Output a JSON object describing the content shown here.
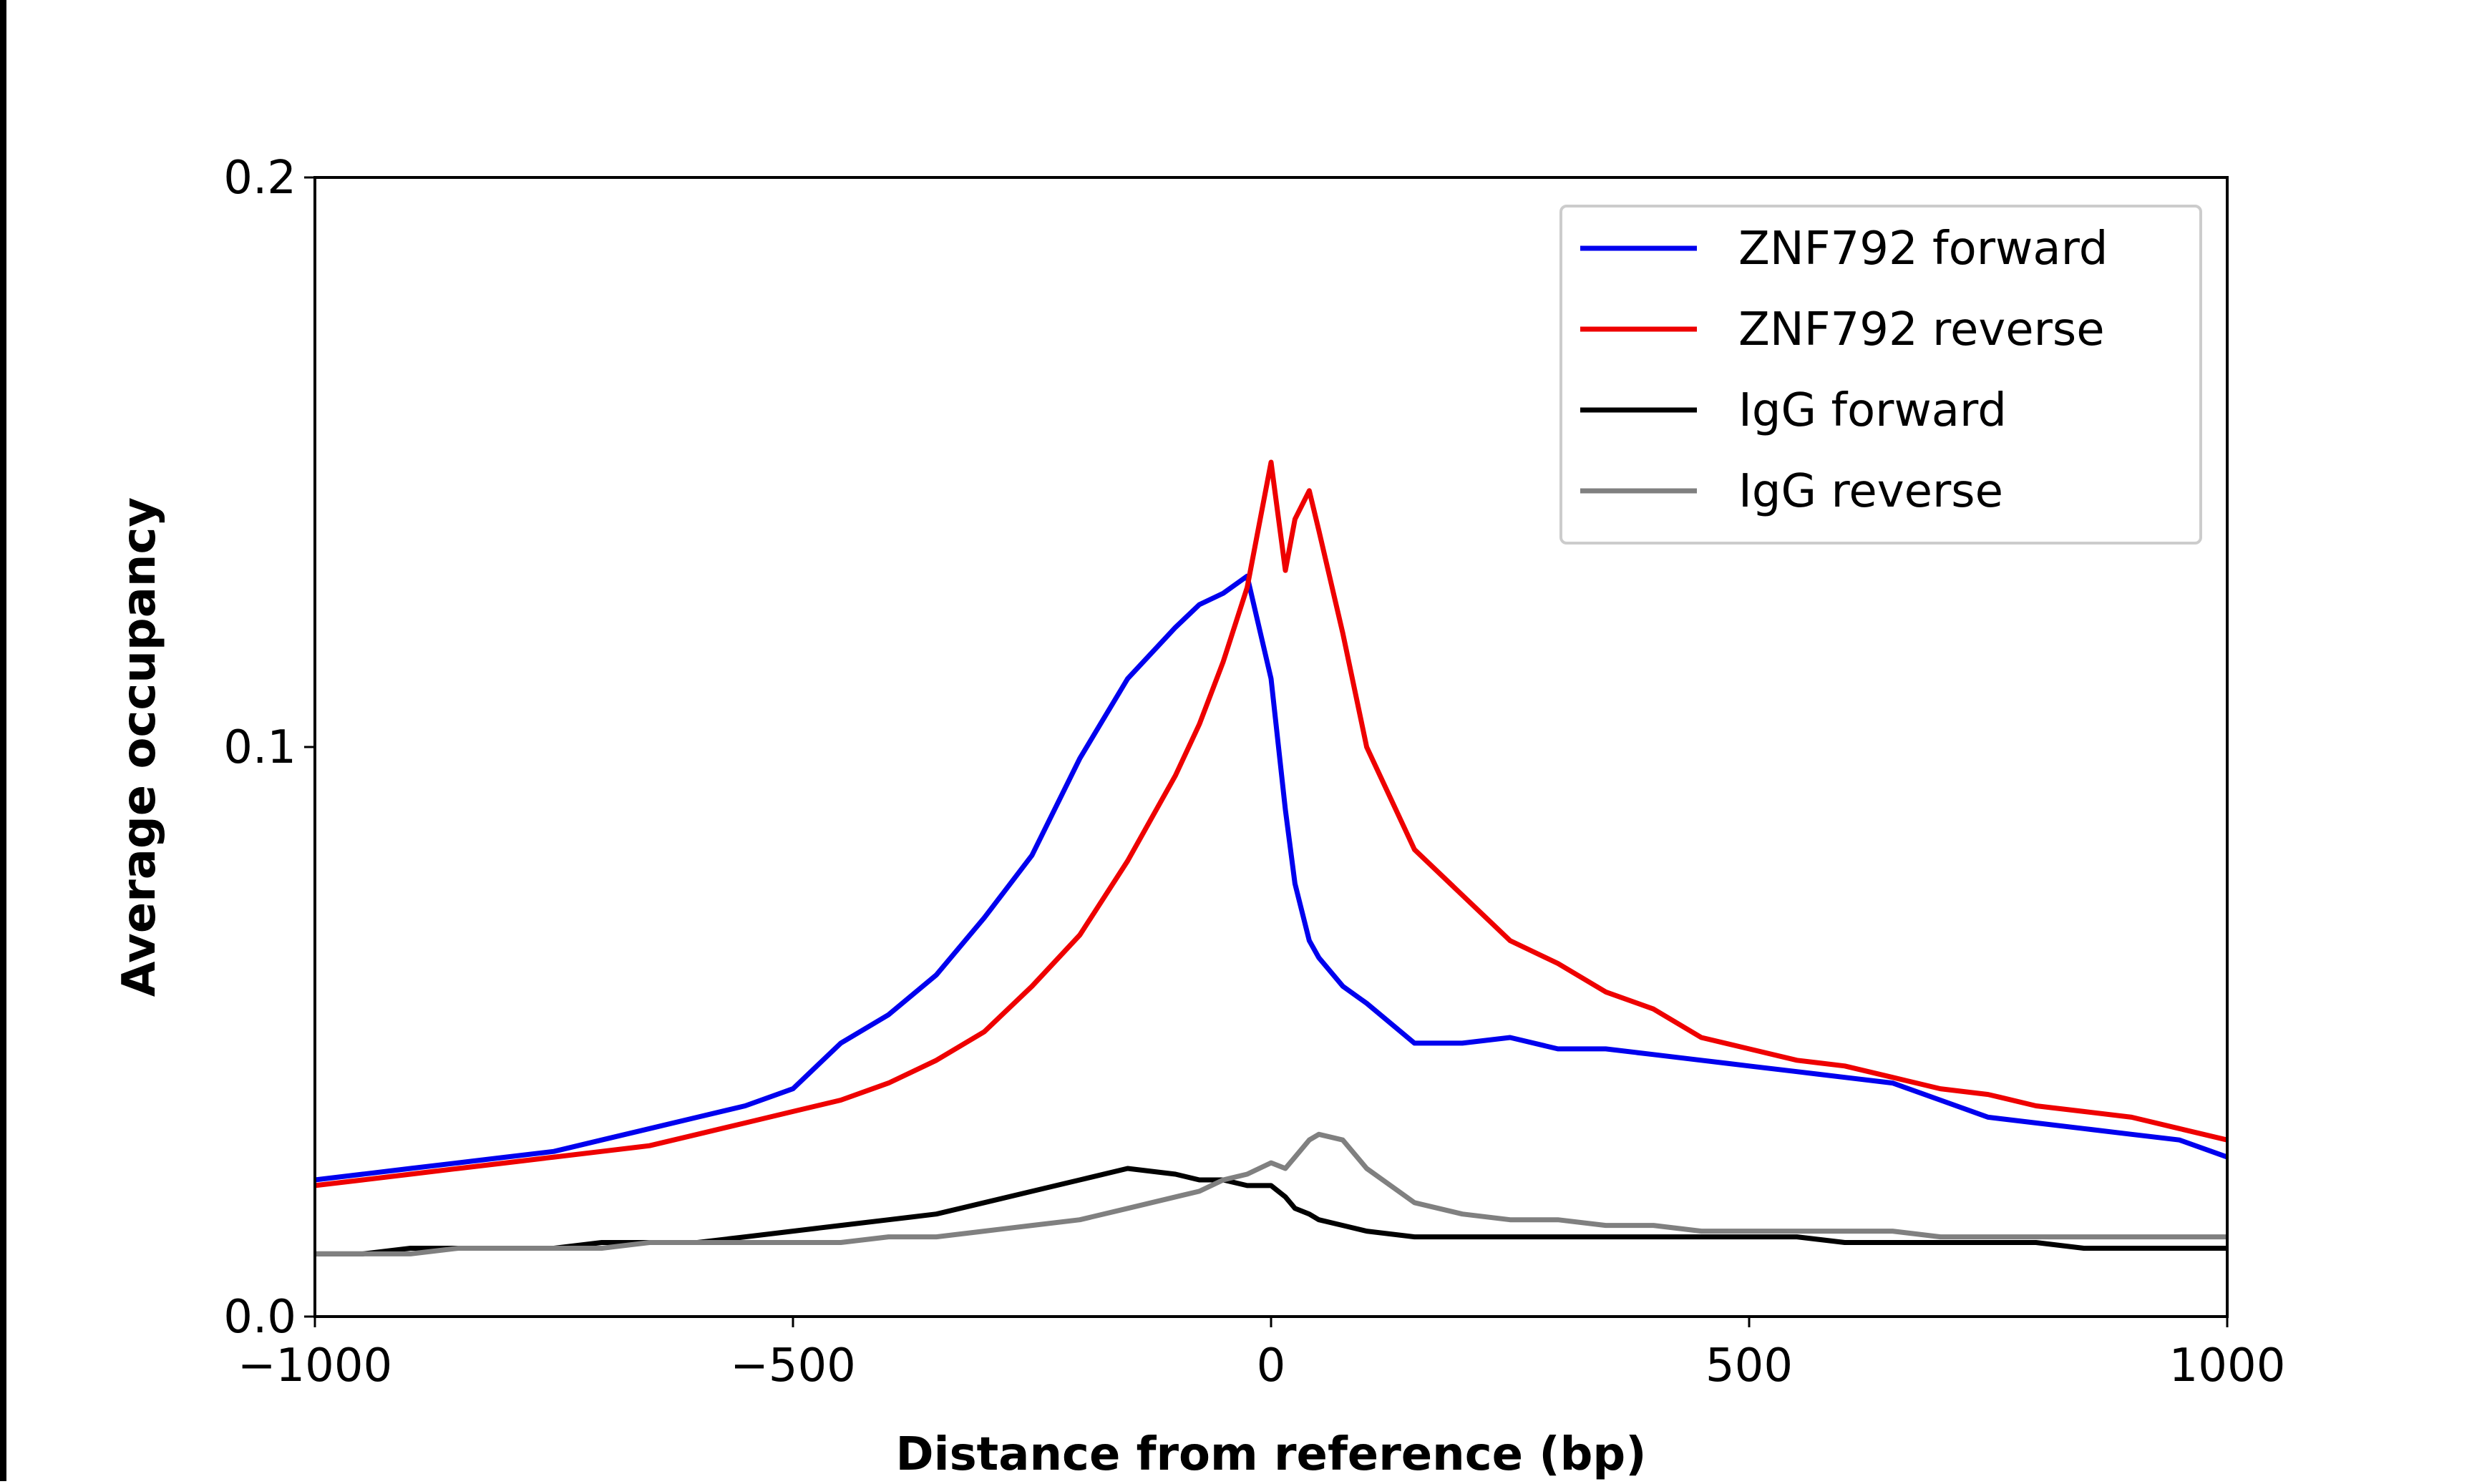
{
  "chart_data": {
    "type": "line",
    "xlabel": "Distance from reference (bp)",
    "ylabel": "Average occupancy",
    "x": [
      -1000,
      -950,
      -900,
      -850,
      -800,
      -750,
      -700,
      -650,
      -600,
      -550,
      -500,
      -450,
      -400,
      -350,
      -300,
      -250,
      -200,
      -150,
      -100,
      -75,
      -50,
      -25,
      0,
      15,
      25,
      40,
      50,
      75,
      100,
      150,
      200,
      250,
      300,
      350,
      400,
      450,
      500,
      550,
      600,
      650,
      700,
      750,
      800,
      850,
      900,
      950,
      1000
    ],
    "series": [
      {
        "name": "ZNF792 forward",
        "color": "#0000ee",
        "values": [
          0.024,
          0.025,
          0.026,
          0.027,
          0.028,
          0.029,
          0.031,
          0.033,
          0.035,
          0.037,
          0.04,
          0.048,
          0.053,
          0.06,
          0.07,
          0.081,
          0.098,
          0.112,
          0.121,
          0.125,
          0.127,
          0.13,
          0.112,
          0.089,
          0.076,
          0.066,
          0.063,
          0.058,
          0.055,
          0.048,
          0.048,
          0.049,
          0.047,
          0.047,
          0.046,
          0.045,
          0.044,
          0.043,
          0.042,
          0.041,
          0.038,
          0.035,
          0.034,
          0.033,
          0.032,
          0.031,
          0.028
        ]
      },
      {
        "name": "ZNF792 reverse",
        "color": "#ee0000",
        "values": [
          0.023,
          0.024,
          0.025,
          0.026,
          0.027,
          0.028,
          0.029,
          0.03,
          0.032,
          0.034,
          0.036,
          0.038,
          0.041,
          0.045,
          0.05,
          0.058,
          0.067,
          0.08,
          0.095,
          0.104,
          0.115,
          0.128,
          0.15,
          0.131,
          0.14,
          0.145,
          0.138,
          0.12,
          0.1,
          0.082,
          0.074,
          0.066,
          0.062,
          0.057,
          0.054,
          0.049,
          0.047,
          0.045,
          0.044,
          0.042,
          0.04,
          0.039,
          0.037,
          0.036,
          0.035,
          0.033,
          0.031
        ]
      },
      {
        "name": "IgG forward",
        "color": "#000000",
        "values": [
          0.011,
          0.011,
          0.012,
          0.012,
          0.012,
          0.012,
          0.013,
          0.013,
          0.013,
          0.014,
          0.015,
          0.016,
          0.017,
          0.018,
          0.02,
          0.022,
          0.024,
          0.026,
          0.025,
          0.024,
          0.024,
          0.023,
          0.023,
          0.021,
          0.019,
          0.018,
          0.017,
          0.016,
          0.015,
          0.014,
          0.014,
          0.014,
          0.014,
          0.014,
          0.014,
          0.014,
          0.014,
          0.014,
          0.013,
          0.013,
          0.013,
          0.013,
          0.013,
          0.012,
          0.012,
          0.012,
          0.012
        ]
      },
      {
        "name": "IgG reverse",
        "color": "#808080",
        "values": [
          0.011,
          0.011,
          0.011,
          0.012,
          0.012,
          0.012,
          0.012,
          0.013,
          0.013,
          0.013,
          0.013,
          0.013,
          0.014,
          0.014,
          0.015,
          0.016,
          0.017,
          0.019,
          0.021,
          0.022,
          0.024,
          0.025,
          0.027,
          0.026,
          0.028,
          0.031,
          0.032,
          0.031,
          0.026,
          0.02,
          0.018,
          0.017,
          0.017,
          0.016,
          0.016,
          0.015,
          0.015,
          0.015,
          0.015,
          0.015,
          0.014,
          0.014,
          0.014,
          0.014,
          0.014,
          0.014,
          0.014
        ]
      }
    ],
    "xlim": [
      -1000,
      1000
    ],
    "xticks": [
      {
        "value": -1000,
        "label": "−1000"
      },
      {
        "value": -500,
        "label": "−500"
      },
      0,
      500,
      1000
    ],
    "ylim": [
      0,
      0.2
    ],
    "yticks": [
      {
        "value": 0,
        "label": "0.0"
      },
      0.1,
      0.2
    ],
    "legend": "upper right"
  }
}
